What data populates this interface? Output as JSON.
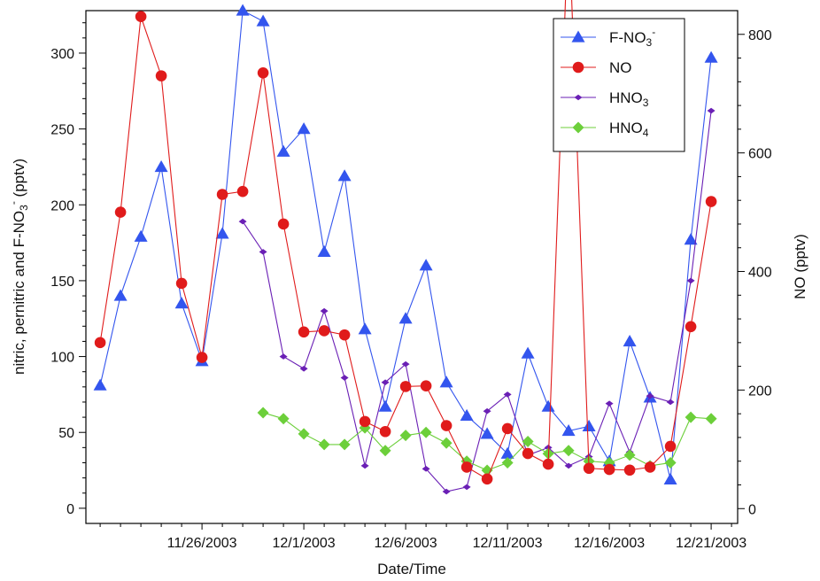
{
  "chart_data": {
    "type": "line",
    "xlabel": "Date/Time",
    "ylabel_left": {
      "main": "nitric, pernitric and F-NO",
      "sub": "3",
      "sup": "-",
      "unit": " (pptv)"
    },
    "ylabel_right": "NO (pptv)",
    "x_tick_labels": [
      "11/26/2003",
      "12/1/2003",
      "12/6/2003",
      "12/11/2003",
      "12/16/2003",
      "12/21/2003"
    ],
    "x_tick_values": [
      5,
      10,
      15,
      20,
      25,
      30
    ],
    "xlim": [
      -0.7,
      31.3
    ],
    "ylim_left": [
      -10,
      328
    ],
    "ylim_right": [
      -25,
      840
    ],
    "left_ticks": [
      0,
      50,
      100,
      150,
      200,
      250,
      300
    ],
    "right_ticks": [
      0,
      200,
      400,
      600,
      800
    ],
    "legend_position": "top-right",
    "series": [
      {
        "name": "F-NO",
        "name_sub": "3",
        "name_sup": "-",
        "axis": "left",
        "color": "#3355ee",
        "marker": "triangle",
        "x": [
          0,
          1,
          2,
          3,
          4,
          5,
          6,
          7,
          8,
          9,
          10,
          11,
          12,
          13,
          14,
          15,
          16,
          17,
          18,
          19,
          20,
          21,
          22,
          23,
          24,
          25,
          26,
          27,
          28,
          29,
          30
        ],
        "values": [
          81,
          140,
          179,
          225,
          135,
          97,
          181,
          328,
          321,
          235,
          250,
          169,
          219,
          118,
          67,
          125,
          160,
          83,
          61,
          49,
          36,
          102,
          67,
          51,
          54,
          31,
          110,
          73,
          19,
          177,
          297
        ]
      },
      {
        "name": "NO",
        "axis": "right",
        "color": "#e01b1b",
        "marker": "circle",
        "x": [
          0,
          1,
          2,
          3,
          4,
          5,
          6,
          7,
          8,
          9,
          10,
          11,
          12,
          13,
          14,
          15,
          16,
          17,
          18,
          19,
          20,
          21,
          22,
          23,
          24,
          25,
          26,
          27,
          28,
          29,
          30
        ],
        "values": [
          280,
          500,
          830,
          730,
          380,
          255,
          530,
          535,
          735,
          480,
          298,
          300,
          293,
          147,
          130,
          206,
          207,
          140,
          70,
          50,
          135,
          93,
          75,
          1000,
          68,
          66,
          65,
          70,
          105,
          307,
          518
        ]
      },
      {
        "name": "HNO",
        "name_sub": "3",
        "axis": "left",
        "color": "#6a1fb5",
        "marker": "diamond-small",
        "x": [
          7,
          8,
          9,
          10,
          11,
          12,
          13,
          14,
          15,
          16,
          17,
          18,
          19,
          20,
          21,
          22,
          23,
          24,
          25,
          26,
          27,
          28,
          29,
          30
        ],
        "values": [
          189,
          169,
          100,
          92,
          130,
          86,
          28,
          83,
          95,
          26,
          11,
          14,
          64,
          75,
          35,
          40,
          28,
          34,
          69,
          37,
          74,
          70,
          150,
          262
        ]
      },
      {
        "name": "HNO",
        "name_sub": "4",
        "axis": "left",
        "color": "#6ccf3a",
        "marker": "diamond",
        "x": [
          8,
          9,
          10,
          11,
          12,
          13,
          14,
          15,
          16,
          17,
          18,
          19,
          20,
          21,
          22,
          23,
          24,
          25,
          26,
          27,
          28,
          29,
          30
        ],
        "values": [
          63,
          59,
          49,
          42,
          42,
          53,
          38,
          48,
          50,
          43,
          31,
          25,
          30,
          44,
          36,
          38,
          31,
          30,
          35,
          28,
          30,
          60,
          59
        ]
      }
    ]
  }
}
